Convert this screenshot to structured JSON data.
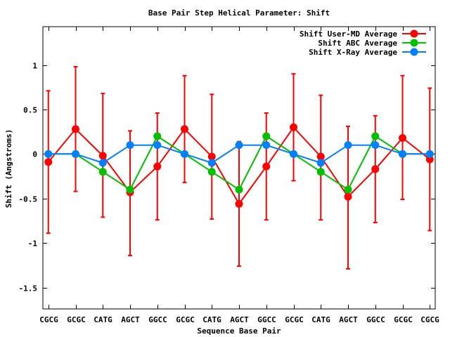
{
  "chart_data": {
    "type": "line",
    "title": "Base Pair Step Helical Parameter: Shift",
    "xlabel": "Sequence Base Pair",
    "ylabel": "Shift (Angstroms)",
    "categories": [
      "CGCG",
      "GCGC",
      "CATG",
      "AGCT",
      "GGCC",
      "GCGC",
      "CATG",
      "AGCT",
      "GGCC",
      "GCGC",
      "CATG",
      "AGCT",
      "GGCC",
      "GCGC",
      "CGCG"
    ],
    "ylim": [
      -1.74,
      1.43
    ],
    "xlim": [
      -0.2,
      14.2
    ],
    "yticks": [
      {
        "value": -1.5,
        "label": "-1.5"
      },
      {
        "value": -1,
        "label": "-1"
      },
      {
        "value": -0.5,
        "label": "-0.5"
      },
      {
        "value": 0,
        "label": "0"
      },
      {
        "value": 0.5,
        "label": "0.5"
      },
      {
        "value": 1,
        "label": "1"
      }
    ],
    "grid": false,
    "legend_position": "top-right",
    "series": [
      {
        "name": "Shift User-MD Average",
        "color": "#ff0000",
        "values": [
          -0.09,
          0.28,
          -0.02,
          -0.43,
          -0.14,
          0.28,
          -0.03,
          -0.56,
          -0.14,
          0.3,
          -0.03,
          -0.48,
          -0.17,
          0.18,
          -0.06
        ],
        "error_low": [
          -0.89,
          -0.42,
          -0.71,
          -1.14,
          -0.74,
          -0.32,
          -0.73,
          -1.26,
          -0.74,
          -0.3,
          -0.74,
          -1.29,
          -0.77,
          -0.51,
          -0.86
        ],
        "error_high": [
          0.71,
          0.98,
          0.68,
          0.26,
          0.46,
          0.88,
          0.67,
          0.14,
          0.46,
          0.9,
          0.66,
          0.31,
          0.43,
          0.88,
          0.74
        ]
      },
      {
        "name": "Shift ABC Average",
        "color": "#00c000",
        "values": [
          0,
          0,
          -0.2,
          -0.4,
          0.2,
          0,
          -0.2,
          -0.4,
          0.2,
          0,
          -0.2,
          -0.4,
          0.2,
          0,
          0
        ]
      },
      {
        "name": "Shift X-Ray Average",
        "color": "#0080ff",
        "values": [
          0,
          0,
          -0.1,
          0.1,
          0.1,
          0,
          -0.1,
          0.1,
          0.1,
          0,
          -0.1,
          0.1,
          0.1,
          0,
          0
        ]
      }
    ]
  }
}
